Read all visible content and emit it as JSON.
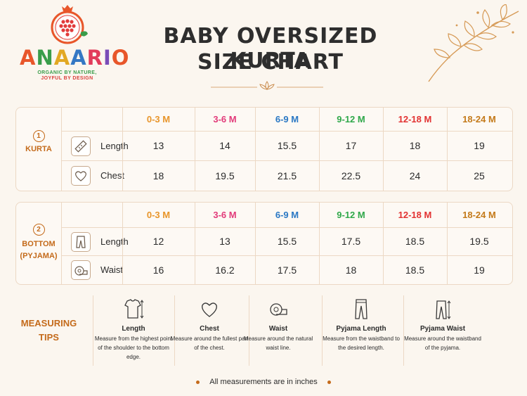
{
  "brand": {
    "letters": [
      "A",
      "N",
      "A",
      "A",
      "R",
      "I",
      "O"
    ],
    "tagline_1": "ORGANIC BY NATURE,",
    "tagline_2": "JOYFUL BY DESIGN"
  },
  "title": {
    "line1": "BABY OVERSIZED KURTA",
    "line2": "SIZE CHART"
  },
  "sizes": [
    "0-3 M",
    "3-6 M",
    "6-9 M",
    "9-12 M",
    "12-18 M",
    "18-24 M"
  ],
  "size_colors": [
    "#e8952a",
    "#e23b7a",
    "#2a78c4",
    "#2fa84a",
    "#e23232",
    "#c47a1a"
  ],
  "kurta": {
    "num": "1",
    "label": "KURTA",
    "rows": [
      {
        "name": "Length",
        "icon": "ruler-icon",
        "values": [
          "13",
          "14",
          "15.5",
          "17",
          "18",
          "19"
        ]
      },
      {
        "name": "Chest",
        "icon": "heart-icon",
        "values": [
          "18",
          "19.5",
          "21.5",
          "22.5",
          "24",
          "25"
        ]
      }
    ]
  },
  "bottom": {
    "num": "2",
    "label_1": "BOTTOM",
    "label_2": "(PYJAMA)",
    "rows": [
      {
        "name": "Length",
        "icon": "pants-icon",
        "values": [
          "12",
          "13",
          "15.5",
          "17.5",
          "18.5",
          "19.5"
        ]
      },
      {
        "name": "Waist",
        "icon": "measuring-tape-icon",
        "values": [
          "16",
          "16.2",
          "17.5",
          "18",
          "18.5",
          "19"
        ]
      }
    ]
  },
  "tips": {
    "label_1": "MEASURING",
    "label_2": "TIPS",
    "items": [
      {
        "name": "Length",
        "desc": "Measure from the highest point of the shoulder to the bottom edge."
      },
      {
        "name": "Chest",
        "desc": "Measure around the fullest part of the chest."
      },
      {
        "name": "Waist",
        "desc": "Measure around the natural waist line."
      },
      {
        "name": "Pyjama Length",
        "desc": "Measure from the waistband to the desired length."
      },
      {
        "name": "Pyjama Waist",
        "desc": "Measure around the waistband of the pyjama."
      }
    ]
  },
  "footer": "All measurements are in inches"
}
